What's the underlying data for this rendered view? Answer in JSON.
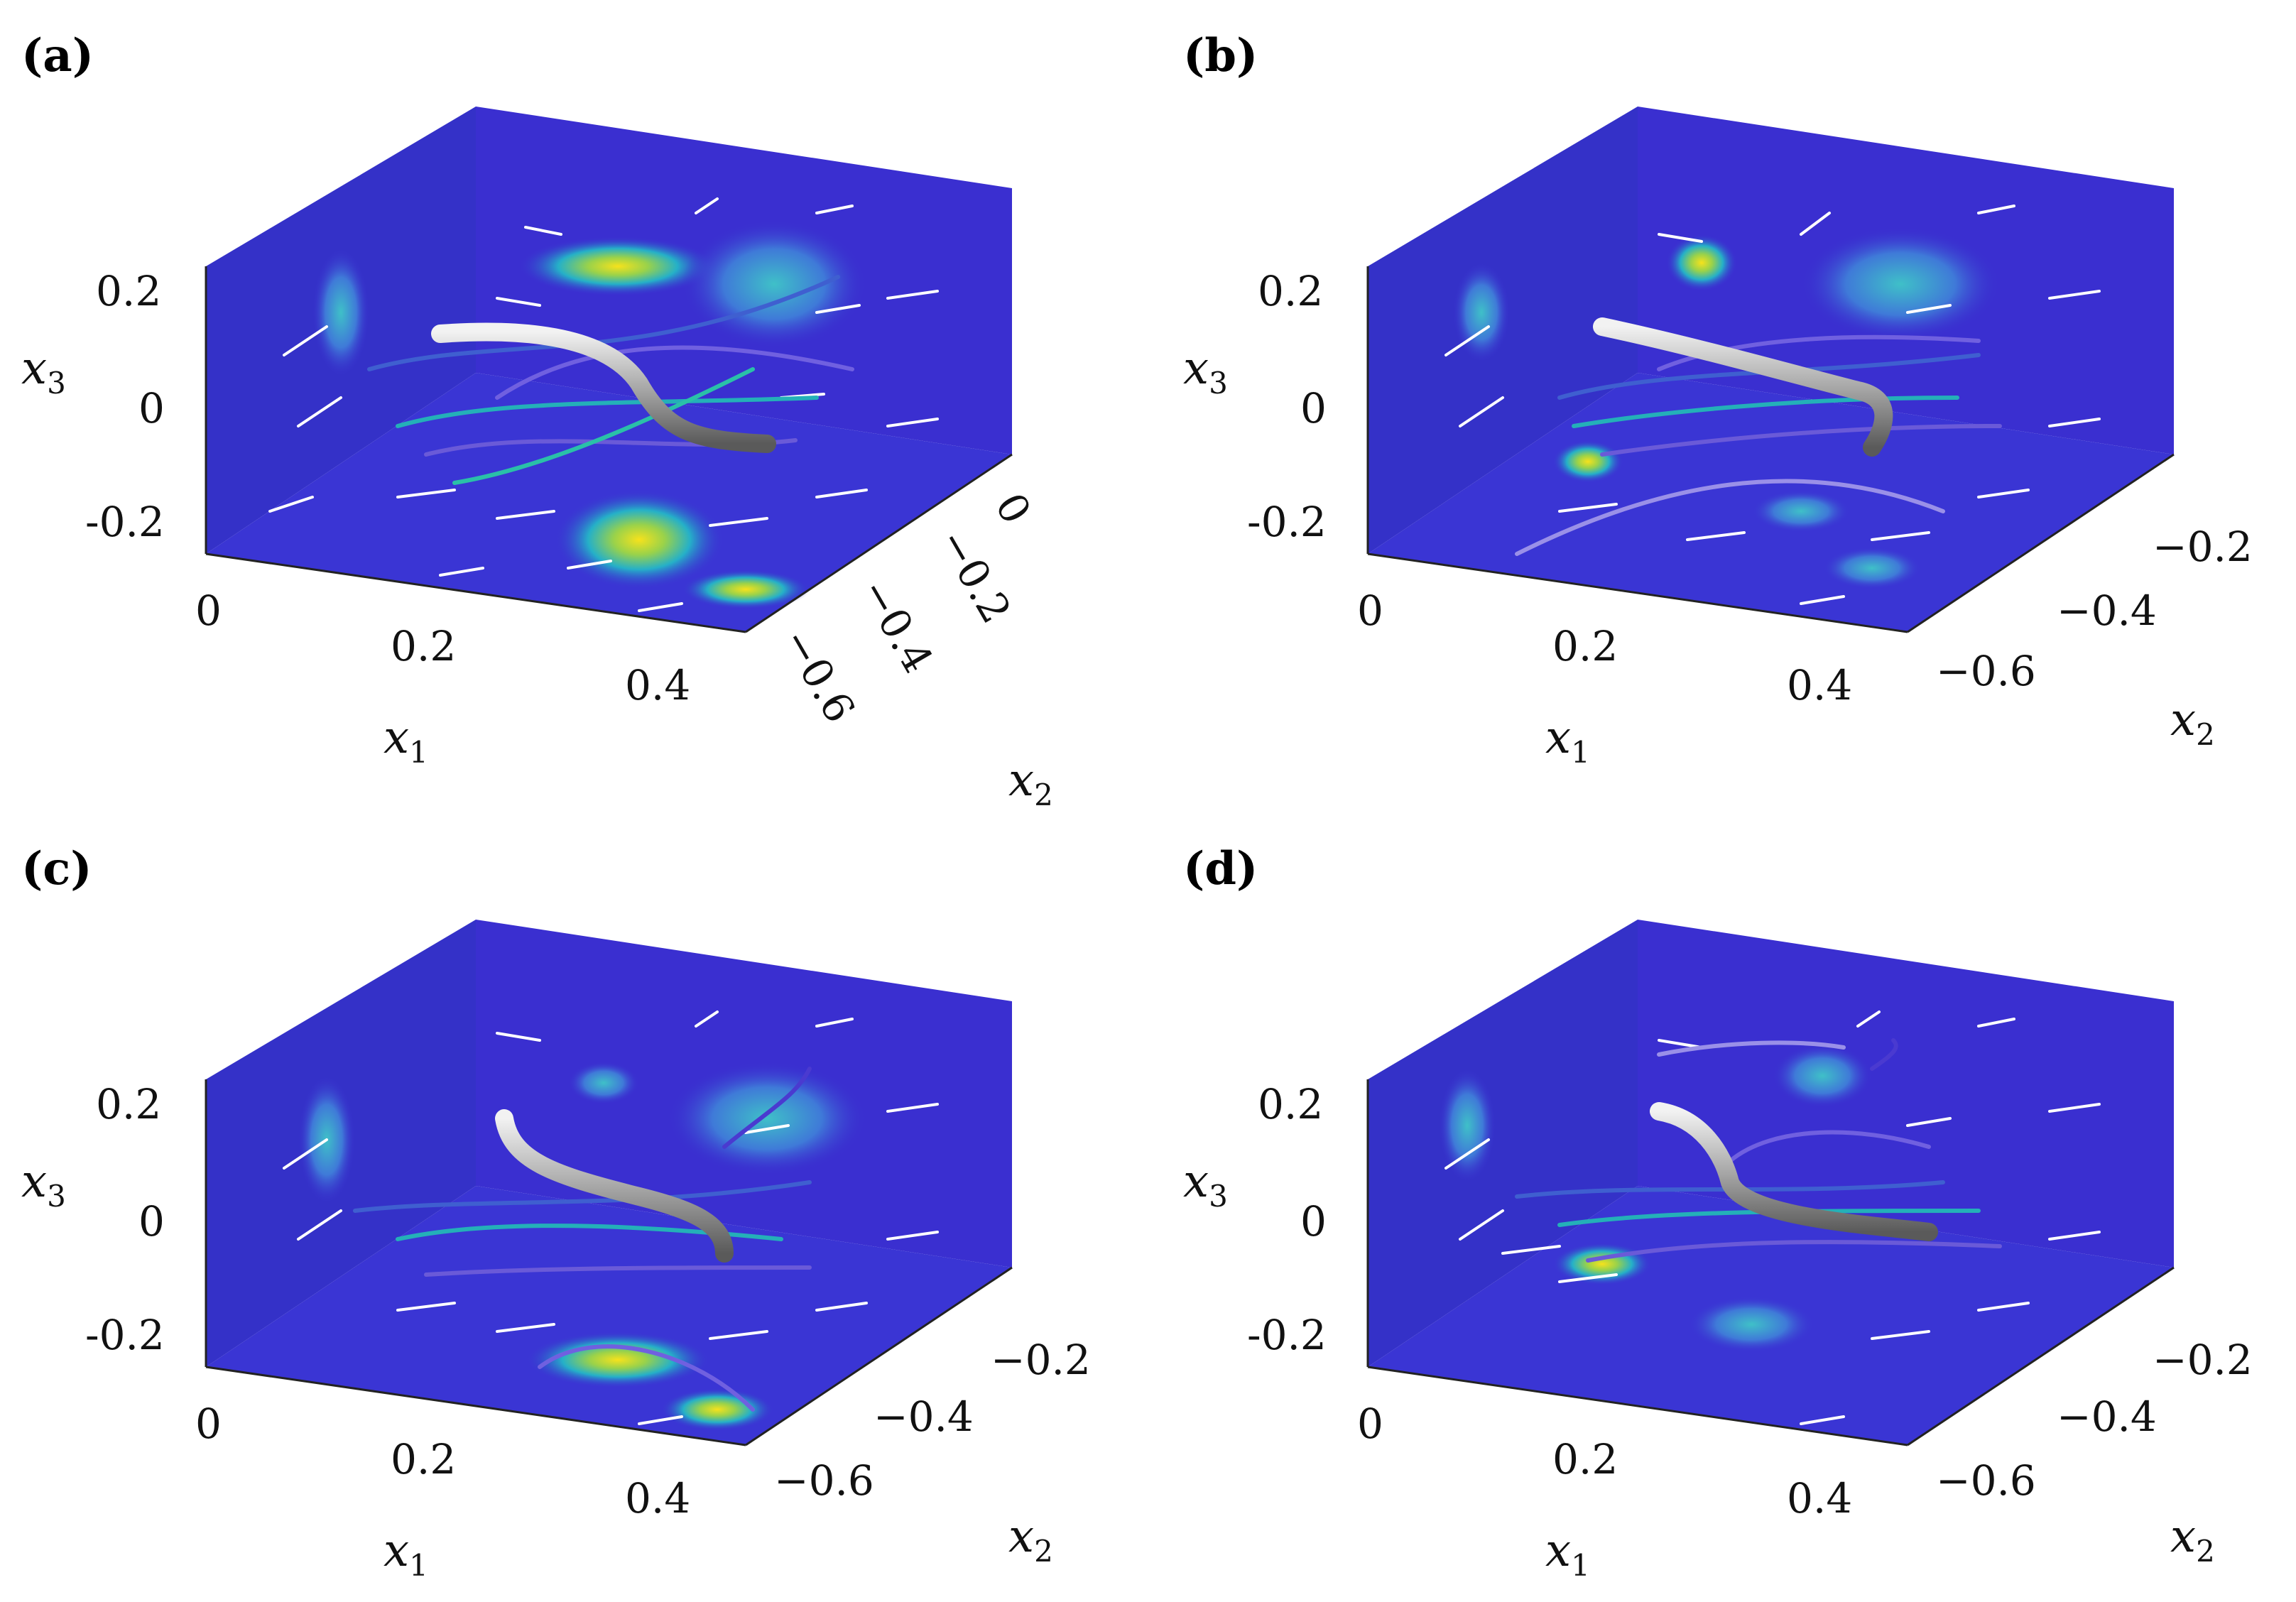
{
  "panels": [
    {
      "label": "(a)",
      "x1_ticks": [
        "0",
        "0.2",
        "0.4"
      ],
      "x2_ticks": [
        "0",
        "−0.2",
        "−0.4",
        "−0.6"
      ],
      "x3_ticks": [
        "0.2",
        "0",
        "-0.2"
      ],
      "x1_label": "x",
      "x1_sub": "1",
      "x2_label": "x",
      "x2_sub": "2",
      "x3_label": "x",
      "x3_sub": "3"
    },
    {
      "label": "(b)",
      "x1_ticks": [
        "0",
        "0.2",
        "0.4"
      ],
      "x2_ticks": [
        "−0.2",
        "−0.4",
        "−0.6"
      ],
      "x3_ticks": [
        "0.2",
        "0",
        "-0.2"
      ],
      "x1_label": "x",
      "x1_sub": "1",
      "x2_label": "x",
      "x2_sub": "2",
      "x3_label": "x",
      "x3_sub": "3"
    },
    {
      "label": "(c)",
      "x1_ticks": [
        "0",
        "0.2",
        "0.4"
      ],
      "x2_ticks": [
        "−0.2",
        "−0.4",
        "−0.6"
      ],
      "x3_ticks": [
        "0.2",
        "0",
        "-0.2"
      ],
      "x1_label": "x",
      "x1_sub": "1",
      "x2_label": "x",
      "x2_sub": "2",
      "x3_label": "x",
      "x3_sub": "3"
    },
    {
      "label": "(d)",
      "x1_ticks": [
        "0",
        "0.2",
        "0.4"
      ],
      "x2_ticks": [
        "−0.2",
        "−0.4",
        "−0.6"
      ],
      "x3_ticks": [
        "0.2",
        "0",
        "-0.2"
      ],
      "x1_label": "x",
      "x1_sub": "1",
      "x2_label": "x",
      "x2_sub": "2",
      "x3_label": "x",
      "x3_sub": "3"
    }
  ],
  "colors": {
    "background_field": "#3a2fd0",
    "field_dark": "#2a1f9a",
    "field_mid": "#1fa0c8",
    "field_high": "#f0e020",
    "arrow": "#ffffff",
    "filament": "#b8b8b8"
  }
}
